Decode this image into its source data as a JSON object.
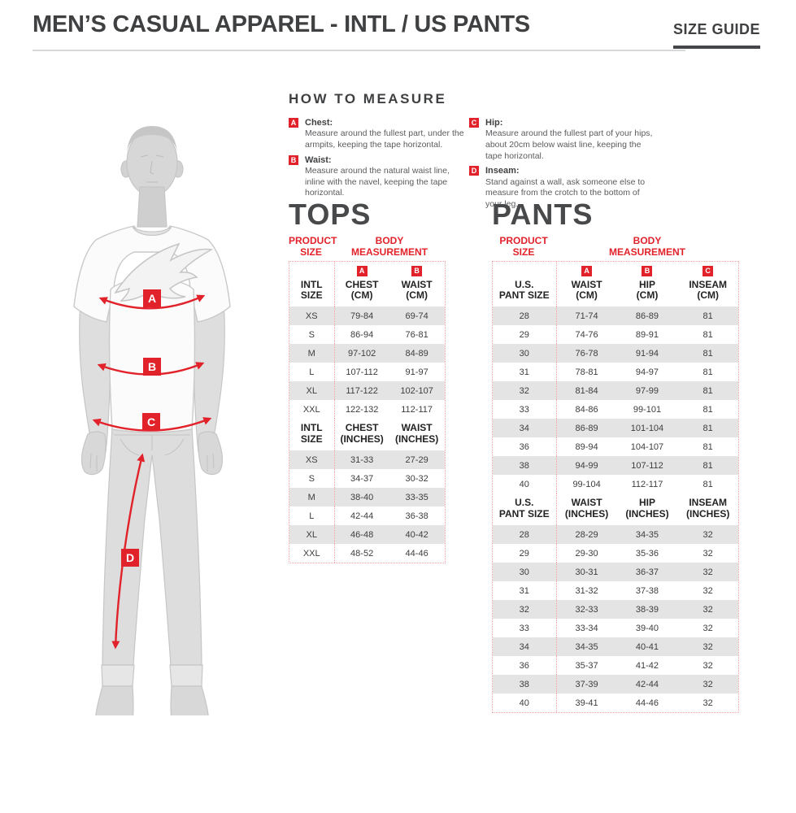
{
  "header": {
    "title": "MEN’S CASUAL APPAREL - INTL / US PANTS",
    "size_guide_label": "SIZE GUIDE"
  },
  "theme": {
    "accent_red": "#e2222a",
    "badge_red": "#e2222a",
    "row_stripe_gray": "#e4e4e4",
    "dotted_border_pink": "#f2a1a5",
    "heading_gray": "#48494b",
    "text_dark": "#3f4042",
    "text_gray": "#5a5b5e",
    "divider_gray": "#d9d9d9",
    "figure_gray": "#dcdcdc"
  },
  "how_to_measure": {
    "title": "HOW TO MEASURE",
    "items": [
      {
        "badge": "A",
        "label": "Chest:",
        "description": "Measure around the fullest part, under the armpits, keeping the tape horizontal."
      },
      {
        "badge": "B",
        "label": "Waist:",
        "description": "Measure around the natural waist line, inline with the navel, keeping the tape horizontal."
      },
      {
        "badge": "C",
        "label": "Hip:",
        "description": "Measure around the fullest part of your hips, about 20cm below waist line, keeping the tape horizontal."
      },
      {
        "badge": "D",
        "label": "Inseam:",
        "description": "Stand against a wall, ask someone else to measure from the crotch to the bottom of your leg."
      }
    ]
  },
  "figure": {
    "markers": [
      "A",
      "B",
      "C",
      "D"
    ]
  },
  "tops": {
    "title": "TOPS",
    "product_size_label": "PRODUCT\nSIZE",
    "body_measurement_label": "BODY\nMEASUREMENT",
    "cm": {
      "size_col_label": "INTL\nSIZE",
      "columns": [
        {
          "badge": "A",
          "label": "CHEST\n(CM)"
        },
        {
          "badge": "B",
          "label": "WAIST\n(CM)"
        }
      ],
      "rows": [
        [
          "XS",
          "79-84",
          "69-74"
        ],
        [
          "S",
          "86-94",
          "76-81"
        ],
        [
          "M",
          "97-102",
          "84-89"
        ],
        [
          "L",
          "107-112",
          "91-97"
        ],
        [
          "XL",
          "117-122",
          "102-107"
        ],
        [
          "XXL",
          "122-132",
          "112-117"
        ]
      ]
    },
    "inches": {
      "size_col_label": "INTL\nSIZE",
      "columns": [
        {
          "label": "CHEST\n(INCHES)"
        },
        {
          "label": "WAIST\n(INCHES)"
        }
      ],
      "rows": [
        [
          "XS",
          "31-33",
          "27-29"
        ],
        [
          "S",
          "34-37",
          "30-32"
        ],
        [
          "M",
          "38-40",
          "33-35"
        ],
        [
          "L",
          "42-44",
          "36-38"
        ],
        [
          "XL",
          "46-48",
          "40-42"
        ],
        [
          "XXL",
          "48-52",
          "44-46"
        ]
      ]
    }
  },
  "pants": {
    "title": "PANTS",
    "product_size_label": "PRODUCT\nSIZE",
    "body_measurement_label": "BODY\nMEASUREMENT",
    "cm": {
      "size_col_label": "U.S.\nPANT SIZE",
      "columns": [
        {
          "badge": "A",
          "label": "WAIST\n(CM)"
        },
        {
          "badge": "B",
          "label": "HIP\n(CM)"
        },
        {
          "badge": "C",
          "label": "INSEAM\n(CM)"
        }
      ],
      "rows": [
        [
          "28",
          "71-74",
          "86-89",
          "81"
        ],
        [
          "29",
          "74-76",
          "89-91",
          "81"
        ],
        [
          "30",
          "76-78",
          "91-94",
          "81"
        ],
        [
          "31",
          "78-81",
          "94-97",
          "81"
        ],
        [
          "32",
          "81-84",
          "97-99",
          "81"
        ],
        [
          "33",
          "84-86",
          "99-101",
          "81"
        ],
        [
          "34",
          "86-89",
          "101-104",
          "81"
        ],
        [
          "36",
          "89-94",
          "104-107",
          "81"
        ],
        [
          "38",
          "94-99",
          "107-112",
          "81"
        ],
        [
          "40",
          "99-104",
          "112-117",
          "81"
        ]
      ]
    },
    "inches": {
      "size_col_label": "U.S.\nPANT SIZE",
      "columns": [
        {
          "label": "WAIST\n(INCHES)"
        },
        {
          "label": "HIP\n(INCHES)"
        },
        {
          "label": "INSEAM\n(INCHES)"
        }
      ],
      "rows": [
        [
          "28",
          "28-29",
          "34-35",
          "32"
        ],
        [
          "29",
          "29-30",
          "35-36",
          "32"
        ],
        [
          "30",
          "30-31",
          "36-37",
          "32"
        ],
        [
          "31",
          "31-32",
          "37-38",
          "32"
        ],
        [
          "32",
          "32-33",
          "38-39",
          "32"
        ],
        [
          "33",
          "33-34",
          "39-40",
          "32"
        ],
        [
          "34",
          "34-35",
          "40-41",
          "32"
        ],
        [
          "36",
          "35-37",
          "41-42",
          "32"
        ],
        [
          "38",
          "37-39",
          "42-44",
          "32"
        ],
        [
          "40",
          "39-41",
          "44-46",
          "32"
        ]
      ]
    }
  }
}
